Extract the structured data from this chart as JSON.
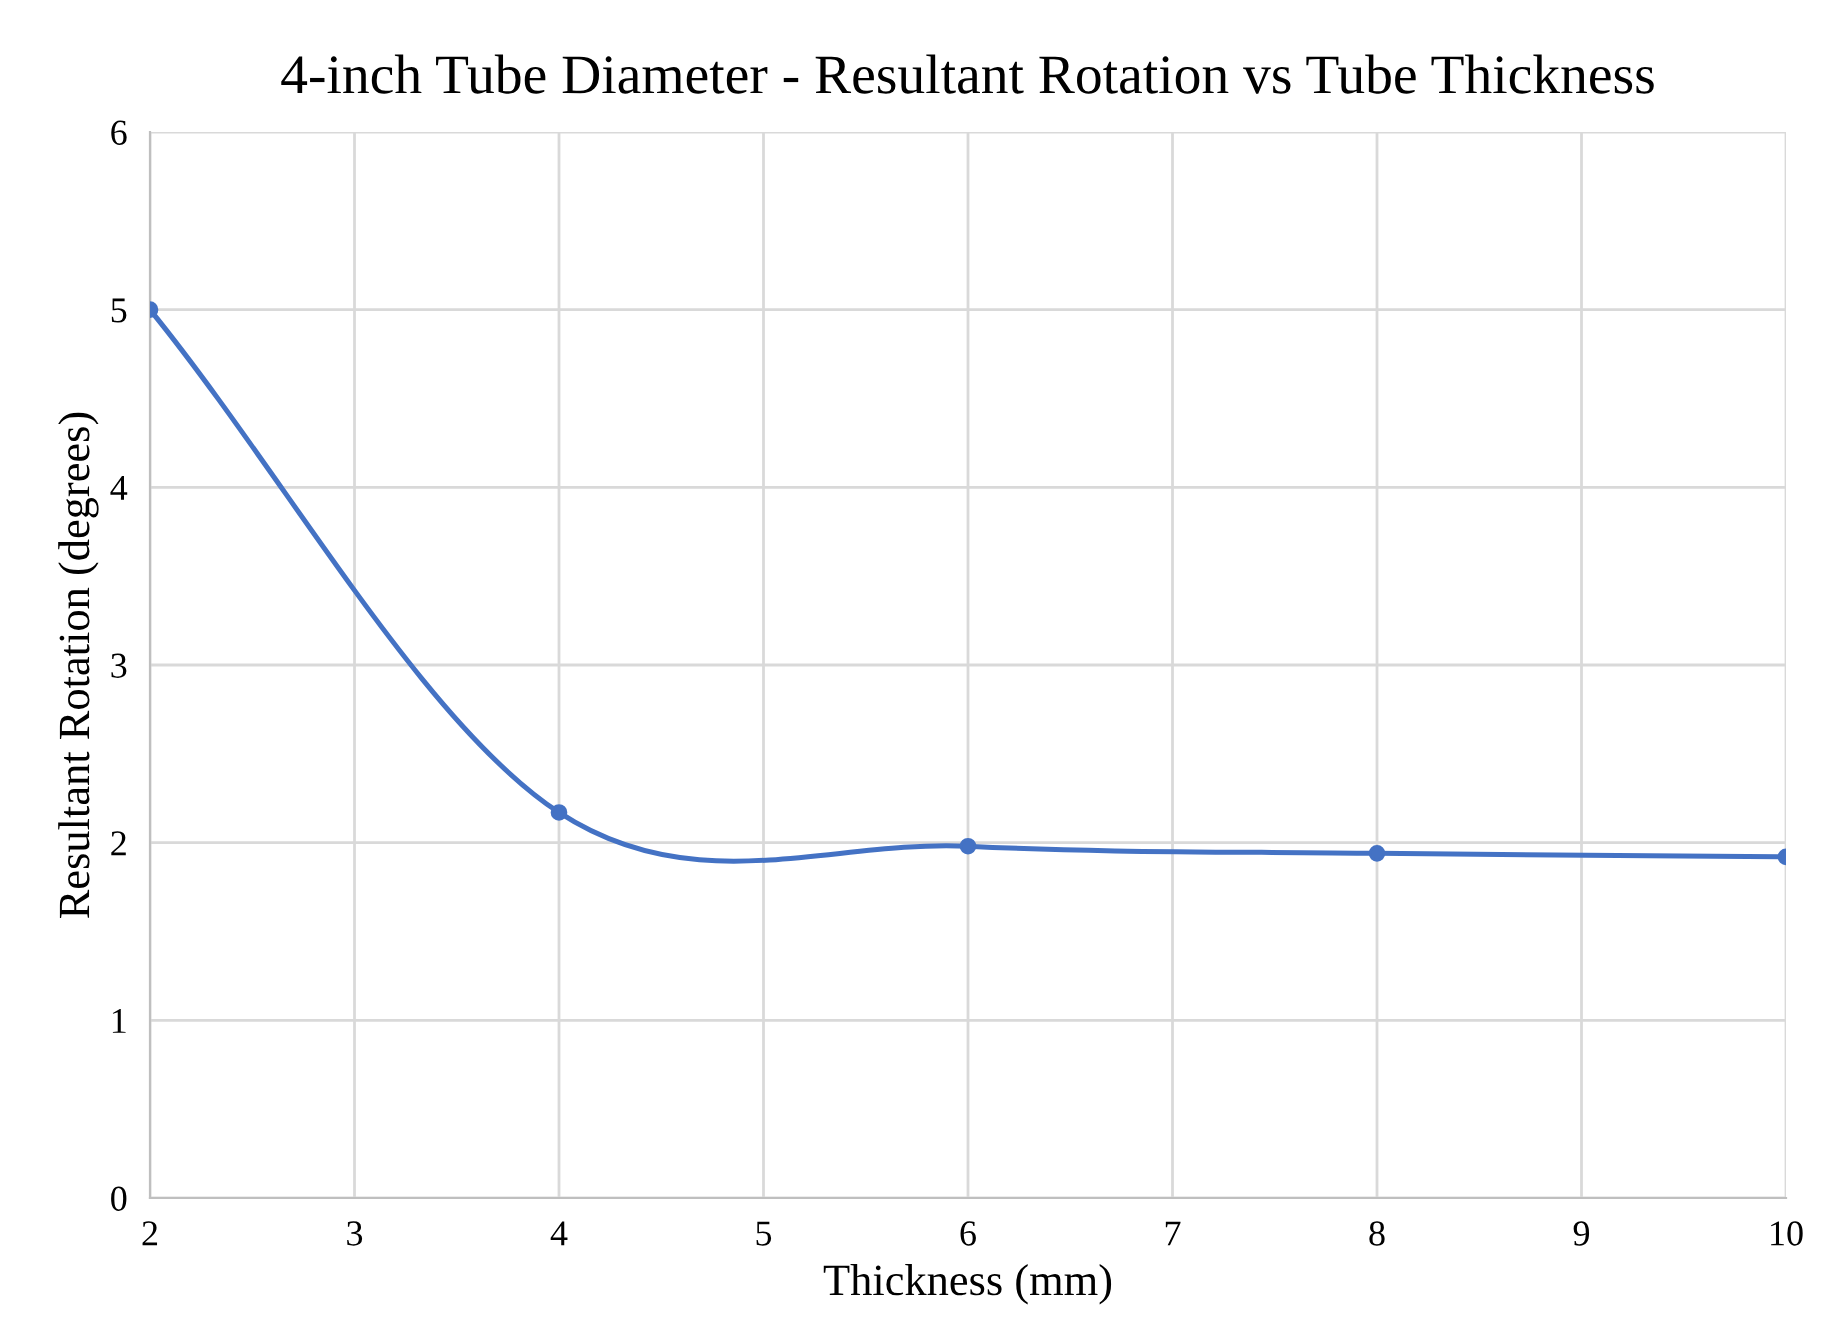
{
  "chart_data": {
    "type": "line",
    "title": "4-inch Tube Diameter - Resultant Rotation vs Tube Thickness",
    "xlabel": "Thickness (mm)",
    "ylabel": "Resultant Rotation (degrees)",
    "x": [
      2,
      4,
      6,
      8,
      10
    ],
    "series": [
      {
        "color": "#4472c4",
        "values": [
          5,
          2.17,
          1.98,
          1.94,
          1.92
        ]
      }
    ],
    "xlim": [
      2,
      10
    ],
    "xticks": [
      2,
      3,
      4,
      5,
      6,
      7,
      8,
      9,
      10
    ],
    "ylim": [
      0,
      6
    ],
    "yticks": [
      0,
      1,
      2,
      3,
      4,
      5,
      6
    ],
    "grid": true,
    "marker": "circle",
    "line_style": "solid",
    "legend": false
  }
}
